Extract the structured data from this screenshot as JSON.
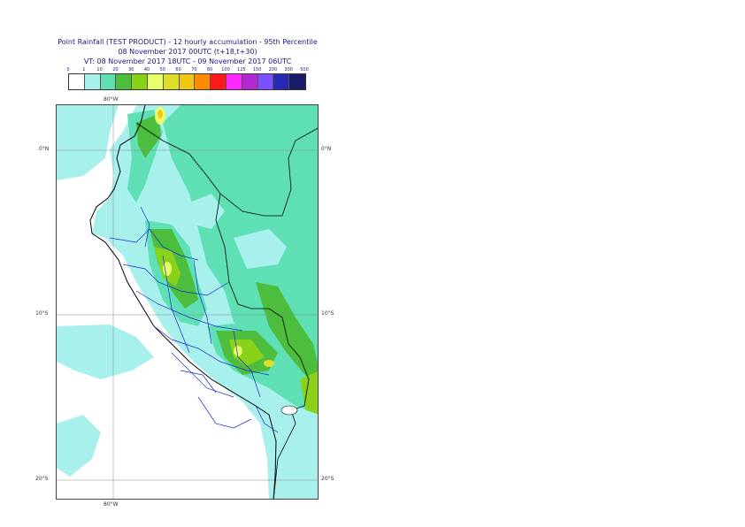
{
  "header": {
    "title_line1": "Point Rainfall (TEST PRODUCT) - 12 hourly accumulation - 95th Percentile",
    "title_line2": "08 November 2017 00UTC (t+18,t+30)",
    "title_line3": "VT: 08 November 2017 18UTC - 09 November 2017 06UTC"
  },
  "legend": {
    "labels": [
      "0",
      "1",
      "10",
      "20",
      "30",
      "40",
      "50",
      "60",
      "70",
      "80",
      "100",
      "125",
      "150",
      "200",
      "300",
      "500"
    ],
    "colors": [
      "#ffffff",
      "#a8f0ec",
      "#5ee0b4",
      "#4cbd3c",
      "#8ad21a",
      "#e6ff6a",
      "#dede28",
      "#f0c814",
      "#ff8c00",
      "#ff1a1a",
      "#ff28ff",
      "#b428d2",
      "#7a50ff",
      "#2828b4",
      "#1a1a6a"
    ]
  },
  "map": {
    "top_lon": "80°W",
    "bottom_lon": "80°W",
    "lat_labels": [
      "0°N",
      "10°S",
      "20°S"
    ],
    "land_color": "#a8f0ec",
    "sea_color": "#ffffff"
  }
}
